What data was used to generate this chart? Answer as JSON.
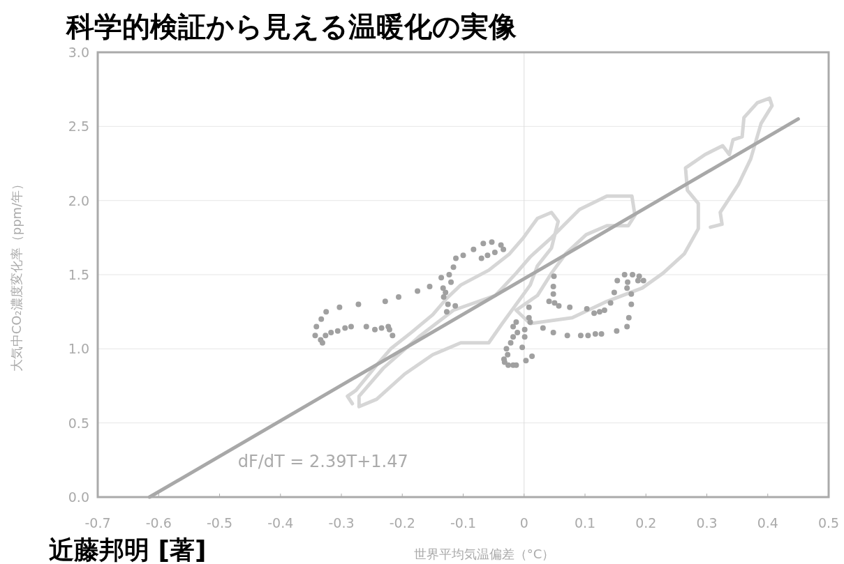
{
  "chart_data": {
    "type": "line",
    "title": "科学的検証から見える温暖化の実像",
    "xlabel": "世界平均気温偏差（°C）",
    "ylabel": "大気中CO₂濃度変化率（ppm/年）",
    "annotations": [
      "dF/dT = 2.39T+1.47",
      "近藤邦明 [著]"
    ],
    "xlim": [
      -0.7,
      0.5
    ],
    "ylim": [
      0,
      3
    ],
    "xticks": [
      -0.7,
      -0.6,
      -0.5,
      -0.4,
      -0.3,
      -0.2,
      -0.1,
      0,
      0.1,
      0.2,
      0.3,
      0.4,
      0.5
    ],
    "yticks": [
      {
        "value": 0,
        "label": "0.0"
      },
      0.5,
      {
        "value": 1,
        "label": "1.0"
      },
      1.5,
      {
        "value": 2,
        "label": "2.0"
      },
      2.5,
      {
        "value": 3,
        "label": "3.0"
      }
    ],
    "grid": "y",
    "ref_lines": [
      {
        "axis": "x",
        "value": 0,
        "color": "#dddddd"
      }
    ],
    "series": [
      {
        "color": "#d6d6d6",
        "line_style": "solid",
        "x": [
          -0.282,
          -0.29,
          -0.276,
          -0.242,
          -0.219,
          -0.185,
          -0.15,
          -0.127,
          -0.104,
          -0.058,
          -0.024,
          -0.001,
          0.022,
          0.045,
          0.056,
          0.045,
          0.022,
          0.01,
          -0.036,
          -0.058,
          -0.104,
          -0.15,
          -0.196,
          -0.242,
          -0.271,
          -0.271,
          -0.231,
          -0.173,
          -0.116,
          -0.047,
          -0.013,
          0.01,
          0.045,
          0.091,
          0.136,
          0.177,
          0.182,
          0.171,
          0.136,
          0.102,
          0.068,
          0.045,
          0.022,
          -0.013,
          0.01,
          0.079,
          0.136,
          0.194,
          0.228,
          0.263,
          0.286,
          0.286,
          0.268,
          0.265,
          0.297,
          0.326,
          0.337,
          0.343,
          0.358,
          0.361,
          0.383,
          0.403,
          0.407,
          0.389,
          0.372,
          0.352,
          0.322,
          0.325,
          0.306
        ],
        "values": [
          0.63,
          0.68,
          0.72,
          0.89,
          1.0,
          1.11,
          1.23,
          1.34,
          1.43,
          1.53,
          1.64,
          1.75,
          1.88,
          1.92,
          1.86,
          1.68,
          1.56,
          1.43,
          1.17,
          1.04,
          1.04,
          0.96,
          0.83,
          0.66,
          0.61,
          0.68,
          0.87,
          1.08,
          1.26,
          1.36,
          1.51,
          1.62,
          1.75,
          1.94,
          2.03,
          2.03,
          1.9,
          1.83,
          1.83,
          1.77,
          1.64,
          1.51,
          1.36,
          1.26,
          1.17,
          1.21,
          1.32,
          1.41,
          1.51,
          1.64,
          1.81,
          1.98,
          2.07,
          2.22,
          2.31,
          2.37,
          2.31,
          2.41,
          2.43,
          2.56,
          2.66,
          2.69,
          2.64,
          2.52,
          2.28,
          2.11,
          1.92,
          1.84,
          1.82
        ]
      },
      {
        "color": "#a8a8a8",
        "line_style": "solid",
        "x": [
          -0.615,
          0.45
        ],
        "values": [
          0,
          2.55
        ]
      },
      {
        "type": "scatter",
        "color": "#a0a0a0",
        "marker": "circle",
        "x": [
          -0.343,
          -0.334,
          -0.331,
          -0.341,
          -0.333,
          -0.325,
          -0.303,
          -0.272,
          -0.228,
          -0.206,
          -0.175,
          -0.155,
          -0.136,
          -0.116,
          -0.112,
          -0.1,
          -0.083,
          -0.067,
          -0.053,
          -0.038,
          -0.034,
          -0.048,
          -0.06,
          -0.07,
          -0.326,
          -0.317,
          -0.306,
          -0.294,
          -0.284,
          -0.259,
          -0.245,
          -0.234,
          -0.223,
          -0.221,
          -0.216,
          -0.123,
          -0.12,
          -0.133,
          -0.129,
          -0.132,
          -0.125,
          -0.113,
          -0.127,
          0.008,
          0.008,
          0.01,
          0.001,
          0.001,
          -0.003,
          0.013,
          0.003,
          -0.013,
          -0.018,
          -0.011,
          -0.018,
          -0.022,
          -0.029,
          -0.027,
          -0.033,
          -0.032,
          -0.026,
          -0.018,
          -0.013,
          0.031,
          0.048,
          0.048,
          0.048,
          0.041,
          0.05,
          0.057,
          0.075,
          0.103,
          0.115,
          0.124,
          0.132,
          0.142,
          0.176,
          0.172,
          0.169,
          0.152,
          0.127,
          0.117,
          0.105,
          0.093,
          0.071,
          0.153,
          0.165,
          0.178,
          0.189,
          0.196,
          0.187,
          0.17,
          0.169,
          0.148,
          0.176,
          0.049
        ],
        "values": [
          1.09,
          1.06,
          1.04,
          1.15,
          1.2,
          1.25,
          1.28,
          1.3,
          1.32,
          1.35,
          1.39,
          1.42,
          1.48,
          1.55,
          1.61,
          1.63,
          1.67,
          1.71,
          1.72,
          1.7,
          1.67,
          1.65,
          1.63,
          1.61,
          1.09,
          1.11,
          1.12,
          1.14,
          1.15,
          1.15,
          1.13,
          1.14,
          1.15,
          1.13,
          1.09,
          1.5,
          1.45,
          1.41,
          1.38,
          1.35,
          1.3,
          1.29,
          1.25,
          1.28,
          1.21,
          1.18,
          1.13,
          1.08,
          1.01,
          0.95,
          0.92,
          1.18,
          1.15,
          1.11,
          1.08,
          1.04,
          1.0,
          0.96,
          0.93,
          0.91,
          0.89,
          0.89,
          0.89,
          1.14,
          1.11,
          1.42,
          1.37,
          1.32,
          1.31,
          1.29,
          1.28,
          1.27,
          1.24,
          1.25,
          1.26,
          1.31,
          1.3,
          1.21,
          1.15,
          1.12,
          1.1,
          1.1,
          1.09,
          1.09,
          1.09,
          1.46,
          1.5,
          1.5,
          1.49,
          1.46,
          1.46,
          1.45,
          1.41,
          1.38,
          1.37,
          1.49
        ]
      }
    ]
  }
}
